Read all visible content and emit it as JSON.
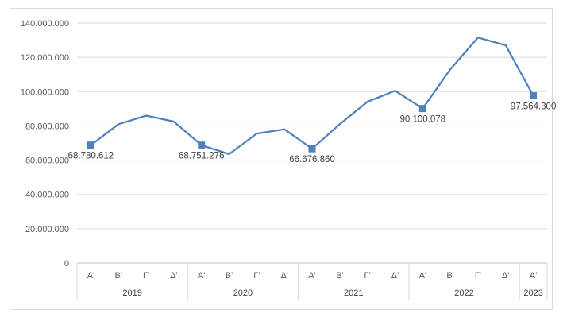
{
  "chart_data": {
    "type": "line",
    "title": "",
    "xlabel": "",
    "ylabel": "",
    "ylim": [
      0,
      140000000
    ],
    "y_ticks": [
      "0",
      "20.000.000",
      "40.000.000",
      "60.000.000",
      "80.000.000",
      "100.000.000",
      "120.000.000",
      "140.000.000"
    ],
    "grid": true,
    "legend": "none",
    "line_color": "#4f81bd",
    "years": [
      {
        "label": "2019",
        "quarters": [
          "Α'",
          "Β'",
          "Γ'",
          "Δ'"
        ]
      },
      {
        "label": "2020",
        "quarters": [
          "Α'",
          "Β'",
          "Γ'",
          "Δ'"
        ]
      },
      {
        "label": "2021",
        "quarters": [
          "Α'",
          "Β'",
          "Γ'",
          "Δ'"
        ]
      },
      {
        "label": "2022",
        "quarters": [
          "Α'",
          "Β'",
          "Γ'",
          "Δ'"
        ]
      },
      {
        "label": "2023",
        "quarters": [
          "Α'"
        ]
      }
    ],
    "values": [
      68780612,
      81000000,
      86000000,
      82500000,
      68751276,
      63500000,
      75500000,
      78000000,
      66676860,
      81000000,
      94000000,
      100500000,
      90100078,
      113000000,
      131500000,
      127000000,
      97564300
    ],
    "data_labels": [
      {
        "index": 0,
        "text": "68.780.612"
      },
      {
        "index": 4,
        "text": "68.751.276"
      },
      {
        "index": 8,
        "text": "66.676.860"
      },
      {
        "index": 12,
        "text": "90.100.078"
      },
      {
        "index": 16,
        "text": "97.564.300"
      }
    ]
  }
}
